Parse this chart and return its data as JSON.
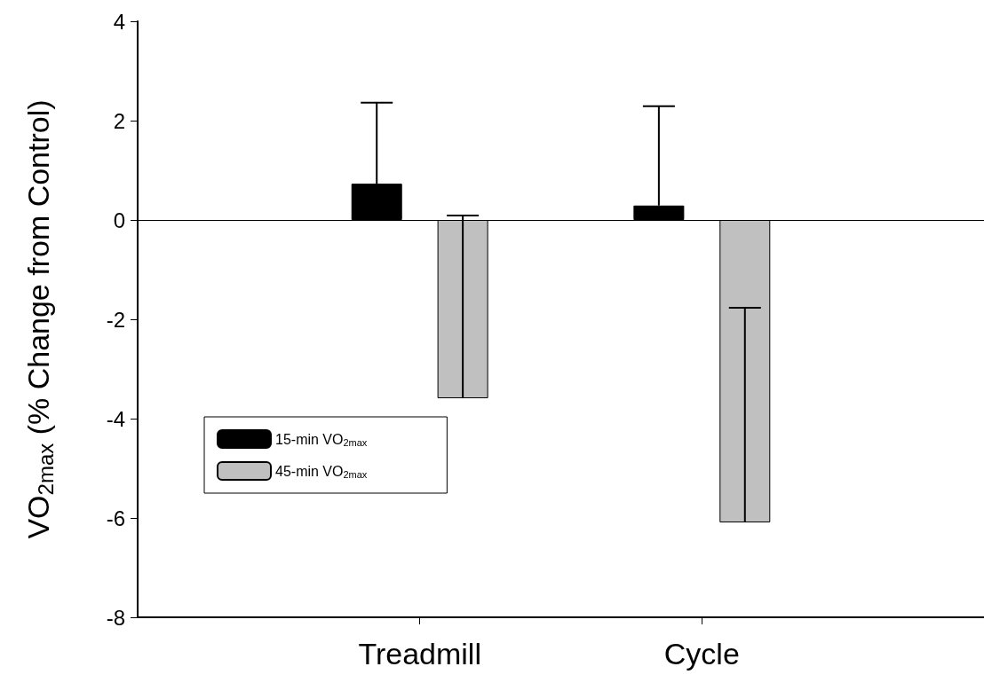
{
  "chart_data": {
    "type": "bar",
    "ylabel": "VO$_{2max}$ (% Change from Control)",
    "categories": [
      "Treadmill",
      "Cycle"
    ],
    "series": [
      {
        "name": "15-min VO$_{2max}$",
        "color": "#000000",
        "values": [
          0.73,
          0.29
        ],
        "errors": [
          [
            0.73,
            2.36
          ],
          [
            0.29,
            2.29
          ]
        ]
      },
      {
        "name": "45-min VO$_{2max}$",
        "color": "#c0c0c0",
        "values": [
          -3.59,
          -6.09
        ],
        "errors": [
          [
            -3.59,
            0.09
          ],
          [
            -6.09,
            -1.77
          ]
        ]
      }
    ],
    "ylim": [
      -8,
      4
    ],
    "yticks": [
      -8,
      -6,
      -4,
      -2,
      0,
      2,
      4
    ],
    "ref_lines": [
      {
        "axis": "y",
        "value": 0
      }
    ],
    "legend": "bottom left",
    "grid": false
  }
}
